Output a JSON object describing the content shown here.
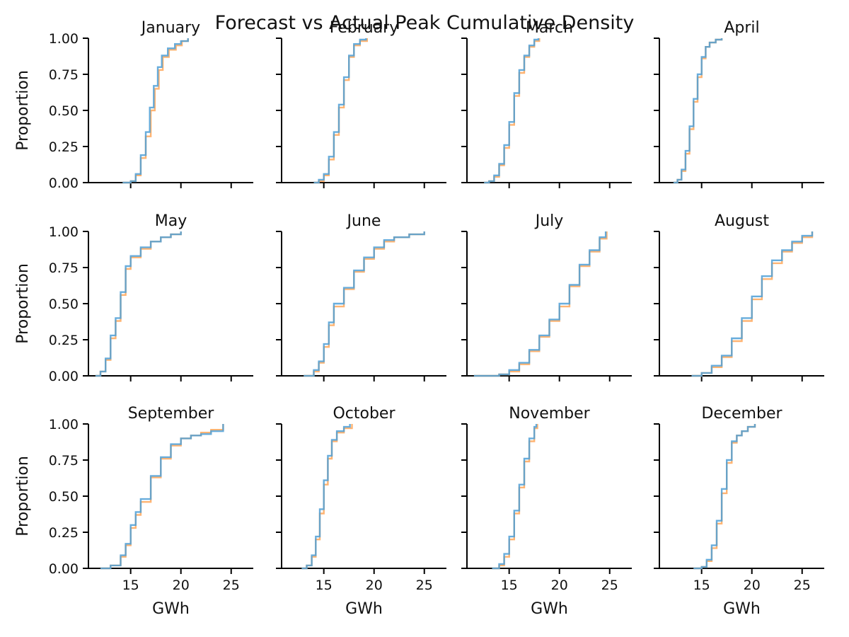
{
  "chart_data": {
    "type": "line",
    "title": "Forecast vs Actual Peak Cumulative Density",
    "xlabel": "GWh",
    "ylabel": "Proportion",
    "xlim": [
      10.8,
      27.2
    ],
    "ylim": [
      0,
      1
    ],
    "x_ticks": [
      "15",
      "20",
      "25"
    ],
    "y_ticks": [
      "0.00",
      "0.25",
      "0.50",
      "0.75",
      "1.00"
    ],
    "grid": false,
    "legend": "none",
    "series_styles": [
      {
        "key": "forecast",
        "color": "#ffa75a"
      },
      {
        "key": "actual",
        "color": "#4d9fd6"
      }
    ],
    "panels": [
      {
        "title": "January",
        "series": [
          {
            "key": "forecast",
            "x": [
              14.2,
              15.0,
              15.5,
              16.0,
              16.5,
              17.0,
              17.4,
              17.8,
              18.2,
              18.8,
              19.5,
              20.1,
              20.7
            ],
            "y": [
              0.0,
              0.01,
              0.05,
              0.17,
              0.32,
              0.5,
              0.65,
              0.78,
              0.87,
              0.92,
              0.95,
              0.98,
              1.0
            ]
          },
          {
            "key": "actual",
            "x": [
              14.2,
              15.0,
              15.5,
              16.0,
              16.5,
              16.9,
              17.3,
              17.7,
              18.1,
              18.7,
              19.4,
              20.0,
              20.7
            ],
            "y": [
              0.0,
              0.01,
              0.06,
              0.19,
              0.35,
              0.52,
              0.67,
              0.8,
              0.88,
              0.93,
              0.96,
              0.98,
              1.0
            ]
          }
        ]
      },
      {
        "title": "February",
        "series": [
          {
            "key": "forecast",
            "x": [
              14.0,
              14.5,
              15.0,
              15.5,
              16.0,
              16.5,
              17.0,
              17.5,
              18.0,
              18.6,
              19.3
            ],
            "y": [
              0.0,
              0.01,
              0.05,
              0.16,
              0.33,
              0.52,
              0.71,
              0.87,
              0.95,
              0.98,
              1.0
            ]
          },
          {
            "key": "actual",
            "x": [
              14.0,
              14.5,
              15.0,
              15.5,
              16.0,
              16.5,
              17.0,
              17.5,
              18.0,
              18.6,
              19.2
            ],
            "y": [
              0.0,
              0.02,
              0.06,
              0.18,
              0.35,
              0.54,
              0.73,
              0.88,
              0.96,
              0.99,
              1.0
            ]
          }
        ]
      },
      {
        "title": "March",
        "series": [
          {
            "key": "forecast",
            "x": [
              12.5,
              13.0,
              13.5,
              14.0,
              14.5,
              15.0,
              15.5,
              16.0,
              16.5,
              17.0,
              17.5,
              18.0
            ],
            "y": [
              0.0,
              0.01,
              0.04,
              0.12,
              0.24,
              0.4,
              0.6,
              0.76,
              0.87,
              0.94,
              0.98,
              1.0
            ]
          },
          {
            "key": "actual",
            "x": [
              12.5,
              13.0,
              13.5,
              14.0,
              14.5,
              15.0,
              15.5,
              16.0,
              16.5,
              17.0,
              17.5,
              17.9
            ],
            "y": [
              0.0,
              0.01,
              0.05,
              0.13,
              0.26,
              0.42,
              0.62,
              0.78,
              0.88,
              0.95,
              0.99,
              1.0
            ]
          }
        ]
      },
      {
        "title": "April",
        "series": [
          {
            "key": "forecast",
            "x": [
              12.2,
              12.6,
              13.0,
              13.4,
              13.8,
              14.2,
              14.6,
              15.0,
              15.4,
              15.8,
              16.4,
              17.0
            ],
            "y": [
              0.0,
              0.02,
              0.08,
              0.2,
              0.37,
              0.56,
              0.73,
              0.86,
              0.94,
              0.97,
              0.99,
              1.0
            ]
          },
          {
            "key": "actual",
            "x": [
              12.2,
              12.6,
              13.0,
              13.4,
              13.8,
              14.2,
              14.6,
              15.0,
              15.4,
              15.8,
              16.4,
              17.0
            ],
            "y": [
              0.0,
              0.02,
              0.09,
              0.22,
              0.39,
              0.58,
              0.75,
              0.87,
              0.94,
              0.97,
              0.99,
              1.0
            ]
          }
        ]
      },
      {
        "title": "May",
        "series": [
          {
            "key": "forecast",
            "x": [
              11.5,
              12.0,
              12.5,
              13.0,
              13.5,
              14.0,
              14.5,
              15.0,
              16.0,
              17.0,
              18.0,
              19.0,
              20.0
            ],
            "y": [
              0.0,
              0.03,
              0.11,
              0.26,
              0.38,
              0.56,
              0.74,
              0.82,
              0.88,
              0.93,
              0.96,
              0.98,
              1.0
            ]
          },
          {
            "key": "actual",
            "x": [
              11.5,
              12.0,
              12.5,
              13.0,
              13.5,
              14.0,
              14.5,
              15.0,
              16.0,
              17.0,
              18.0,
              19.0,
              20.0
            ],
            "y": [
              0.0,
              0.03,
              0.12,
              0.28,
              0.4,
              0.58,
              0.76,
              0.83,
              0.89,
              0.93,
              0.96,
              0.98,
              1.0
            ]
          }
        ]
      },
      {
        "title": "June",
        "series": [
          {
            "key": "forecast",
            "x": [
              13.0,
              14.0,
              14.5,
              15.0,
              15.5,
              16.0,
              17.0,
              18.0,
              19.0,
              20.0,
              21.0,
              22.0,
              23.5,
              25.0
            ],
            "y": [
              0.0,
              0.03,
              0.09,
              0.2,
              0.35,
              0.48,
              0.6,
              0.72,
              0.81,
              0.88,
              0.93,
              0.96,
              0.98,
              1.0
            ]
          },
          {
            "key": "actual",
            "x": [
              13.0,
              14.0,
              14.5,
              15.0,
              15.5,
              16.0,
              17.0,
              18.0,
              19.0,
              20.0,
              21.0,
              22.0,
              23.5,
              25.0
            ],
            "y": [
              0.0,
              0.04,
              0.1,
              0.22,
              0.37,
              0.5,
              0.61,
              0.73,
              0.82,
              0.89,
              0.94,
              0.96,
              0.98,
              1.0
            ]
          }
        ]
      },
      {
        "title": "July",
        "series": [
          {
            "key": "forecast",
            "x": [
              11.5,
              13.0,
              14.0,
              15.0,
              16.0,
              17.0,
              18.0,
              19.0,
              20.0,
              21.0,
              22.0,
              23.0,
              24.0,
              24.7
            ],
            "y": [
              0.0,
              0.0,
              0.01,
              0.03,
              0.08,
              0.17,
              0.27,
              0.38,
              0.48,
              0.62,
              0.76,
              0.86,
              0.95,
              1.0
            ]
          },
          {
            "key": "actual",
            "x": [
              11.5,
              13.0,
              14.0,
              15.0,
              16.0,
              17.0,
              18.0,
              19.0,
              20.0,
              21.0,
              22.0,
              23.0,
              24.0,
              24.6
            ],
            "y": [
              0.0,
              0.0,
              0.01,
              0.04,
              0.09,
              0.18,
              0.28,
              0.39,
              0.5,
              0.63,
              0.77,
              0.87,
              0.96,
              1.0
            ]
          }
        ]
      },
      {
        "title": "August",
        "series": [
          {
            "key": "forecast",
            "x": [
              14.0,
              15.0,
              16.0,
              17.0,
              18.0,
              19.0,
              20.0,
              21.0,
              22.0,
              23.0,
              24.0,
              25.0,
              26.0
            ],
            "y": [
              0.0,
              0.02,
              0.06,
              0.13,
              0.24,
              0.38,
              0.53,
              0.67,
              0.78,
              0.86,
              0.92,
              0.96,
              1.0
            ]
          },
          {
            "key": "actual",
            "x": [
              14.0,
              15.0,
              16.0,
              17.0,
              18.0,
              19.0,
              20.0,
              21.0,
              22.0,
              23.0,
              24.0,
              25.0,
              26.0
            ],
            "y": [
              0.0,
              0.02,
              0.07,
              0.14,
              0.26,
              0.4,
              0.55,
              0.69,
              0.8,
              0.87,
              0.93,
              0.97,
              1.0
            ]
          }
        ]
      },
      {
        "title": "September",
        "series": [
          {
            "key": "forecast",
            "x": [
              12.0,
              13.0,
              14.0,
              14.5,
              15.0,
              15.5,
              16.0,
              17.0,
              18.0,
              19.0,
              20.0,
              21.0,
              22.0,
              23.0,
              24.2
            ],
            "y": [
              0.0,
              0.02,
              0.08,
              0.16,
              0.28,
              0.37,
              0.46,
              0.63,
              0.76,
              0.85,
              0.9,
              0.92,
              0.94,
              0.96,
              1.0
            ]
          },
          {
            "key": "actual",
            "x": [
              12.0,
              13.0,
              14.0,
              14.5,
              15.0,
              15.5,
              16.0,
              17.0,
              18.0,
              19.0,
              20.0,
              21.0,
              22.0,
              23.0,
              24.2
            ],
            "y": [
              0.0,
              0.02,
              0.09,
              0.17,
              0.3,
              0.39,
              0.48,
              0.64,
              0.77,
              0.86,
              0.9,
              0.92,
              0.93,
              0.95,
              1.0
            ]
          }
        ]
      },
      {
        "title": "October",
        "series": [
          {
            "key": "forecast",
            "x": [
              12.8,
              13.3,
              13.8,
              14.2,
              14.6,
              15.0,
              15.4,
              15.8,
              16.3,
              17.0,
              17.8
            ],
            "y": [
              0.0,
              0.02,
              0.08,
              0.2,
              0.38,
              0.58,
              0.76,
              0.88,
              0.94,
              0.97,
              1.0
            ]
          },
          {
            "key": "actual",
            "x": [
              12.8,
              13.3,
              13.8,
              14.2,
              14.6,
              15.0,
              15.4,
              15.8,
              16.3,
              17.0,
              17.6
            ],
            "y": [
              0.0,
              0.02,
              0.09,
              0.22,
              0.41,
              0.61,
              0.78,
              0.89,
              0.95,
              0.98,
              1.0
            ]
          }
        ]
      },
      {
        "title": "November",
        "series": [
          {
            "key": "forecast",
            "x": [
              13.3,
              14.0,
              14.5,
              15.0,
              15.5,
              16.0,
              16.5,
              17.0,
              17.5,
              17.8
            ],
            "y": [
              0.0,
              0.02,
              0.08,
              0.2,
              0.38,
              0.56,
              0.74,
              0.88,
              0.97,
              1.0
            ]
          },
          {
            "key": "actual",
            "x": [
              13.3,
              14.0,
              14.5,
              15.0,
              15.5,
              16.0,
              16.5,
              17.0,
              17.5,
              17.7
            ],
            "y": [
              0.0,
              0.03,
              0.1,
              0.22,
              0.4,
              0.58,
              0.76,
              0.9,
              0.98,
              1.0
            ]
          }
        ]
      },
      {
        "title": "December",
        "series": [
          {
            "key": "forecast",
            "x": [
              14.2,
              15.0,
              15.5,
              16.0,
              16.5,
              17.0,
              17.5,
              18.0,
              18.5,
              19.0,
              19.6,
              20.3
            ],
            "y": [
              0.0,
              0.01,
              0.05,
              0.14,
              0.31,
              0.52,
              0.73,
              0.87,
              0.92,
              0.95,
              0.98,
              1.0
            ]
          },
          {
            "key": "actual",
            "x": [
              14.2,
              15.0,
              15.5,
              16.0,
              16.5,
              17.0,
              17.5,
              18.0,
              18.5,
              19.0,
              19.6,
              20.3
            ],
            "y": [
              0.0,
              0.01,
              0.06,
              0.16,
              0.33,
              0.55,
              0.75,
              0.88,
              0.92,
              0.95,
              0.98,
              1.0
            ]
          }
        ]
      }
    ]
  }
}
